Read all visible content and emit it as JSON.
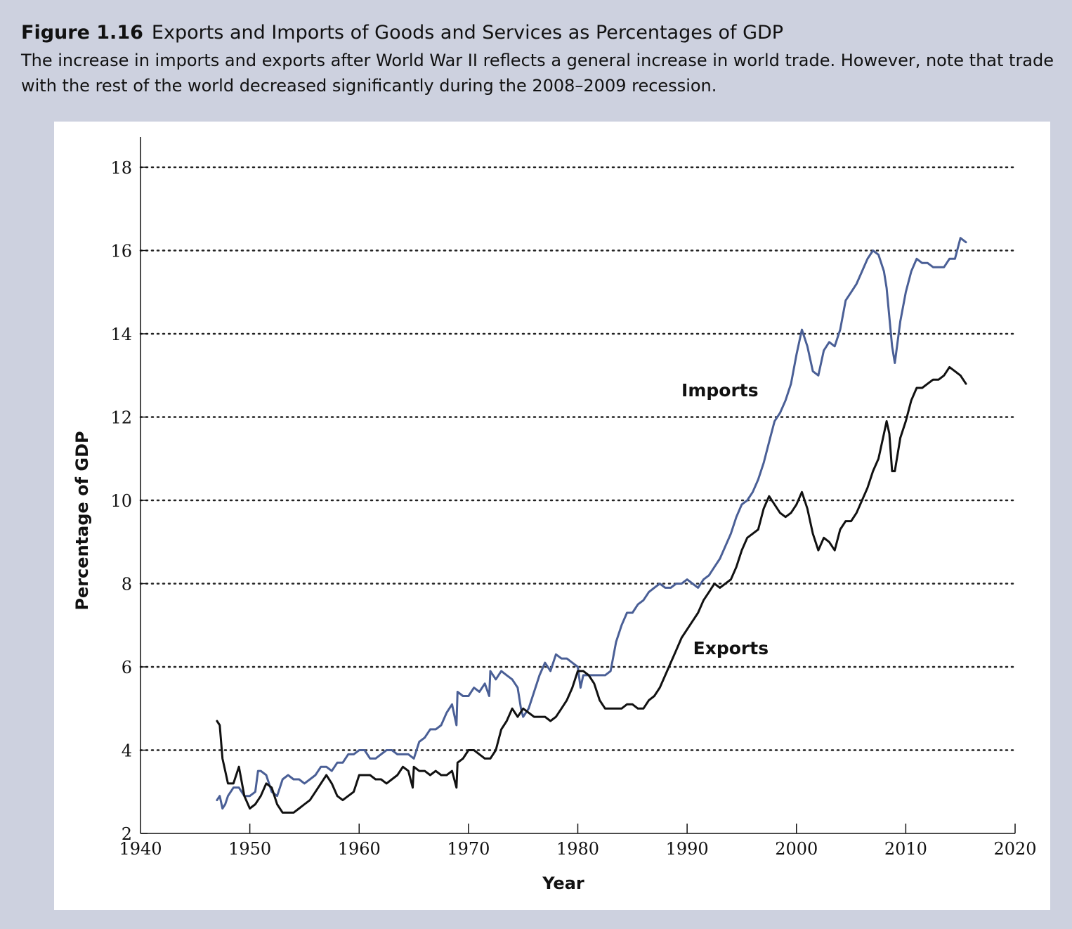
{
  "figure": {
    "number": "Figure 1.16",
    "title": "Exports and Imports of Goods and Services as Percentages of GDP",
    "caption": "The increase in imports and exports after World War II reflects a general increase in world trade. However, note that trade with the rest of the world decreased significantly during the 2008–2009 recession."
  },
  "colors": {
    "background": "#cdd1df",
    "panel": "#ffffff",
    "imports": "#4a5f96",
    "exports": "#111111",
    "grid": "#222222"
  },
  "chart_data": {
    "type": "line",
    "xlabel": "Year",
    "ylabel": "Percentage of GDP",
    "xlim": [
      1940,
      2020
    ],
    "ylim": [
      2,
      18
    ],
    "xticks": [
      "1940",
      "1950",
      "1960",
      "1970",
      "1980",
      "1990",
      "2000",
      "2010",
      "2020"
    ],
    "yticks": [
      "2",
      "4",
      "6",
      "8",
      "10",
      "12",
      "14",
      "16",
      "18"
    ],
    "grid": "horizontal dotted",
    "series": [
      {
        "name": "Imports",
        "color": "#4a5f96",
        "points": [
          [
            1947.0,
            2.8
          ],
          [
            1947.25,
            2.9
          ],
          [
            1947.5,
            2.6
          ],
          [
            1947.75,
            2.7
          ],
          [
            1948.0,
            2.9
          ],
          [
            1948.5,
            3.1
          ],
          [
            1949.0,
            3.1
          ],
          [
            1949.5,
            2.9
          ],
          [
            1950.0,
            2.9
          ],
          [
            1950.5,
            3.0
          ],
          [
            1950.75,
            3.5
          ],
          [
            1951.0,
            3.5
          ],
          [
            1951.5,
            3.4
          ],
          [
            1952.0,
            3.0
          ],
          [
            1952.5,
            2.9
          ],
          [
            1953.0,
            3.3
          ],
          [
            1953.5,
            3.4
          ],
          [
            1954.0,
            3.3
          ],
          [
            1954.5,
            3.3
          ],
          [
            1955.0,
            3.2
          ],
          [
            1955.5,
            3.3
          ],
          [
            1956.0,
            3.4
          ],
          [
            1956.5,
            3.6
          ],
          [
            1957.0,
            3.6
          ],
          [
            1957.5,
            3.5
          ],
          [
            1958.0,
            3.7
          ],
          [
            1958.5,
            3.7
          ],
          [
            1959.0,
            3.9
          ],
          [
            1959.5,
            3.9
          ],
          [
            1960.0,
            4.0
          ],
          [
            1960.5,
            4.0
          ],
          [
            1961.0,
            3.8
          ],
          [
            1961.5,
            3.8
          ],
          [
            1962.0,
            3.9
          ],
          [
            1962.5,
            4.0
          ],
          [
            1963.0,
            4.0
          ],
          [
            1963.5,
            3.9
          ],
          [
            1964.0,
            3.9
          ],
          [
            1964.5,
            3.9
          ],
          [
            1965.0,
            3.8
          ],
          [
            1965.5,
            4.2
          ],
          [
            1966.0,
            4.3
          ],
          [
            1966.5,
            4.5
          ],
          [
            1967.0,
            4.5
          ],
          [
            1967.5,
            4.6
          ],
          [
            1968.0,
            4.9
          ],
          [
            1968.5,
            5.1
          ],
          [
            1968.9,
            4.6
          ],
          [
            1969.0,
            5.4
          ],
          [
            1969.5,
            5.3
          ],
          [
            1970.0,
            5.3
          ],
          [
            1970.5,
            5.5
          ],
          [
            1971.0,
            5.4
          ],
          [
            1971.5,
            5.6
          ],
          [
            1971.9,
            5.3
          ],
          [
            1972.0,
            5.9
          ],
          [
            1972.5,
            5.7
          ],
          [
            1973.0,
            5.9
          ],
          [
            1973.5,
            5.8
          ],
          [
            1974.0,
            5.7
          ],
          [
            1974.5,
            5.5
          ],
          [
            1974.8,
            5.0
          ],
          [
            1975.0,
            4.8
          ],
          [
            1975.5,
            5.0
          ],
          [
            1976.0,
            5.4
          ],
          [
            1976.5,
            5.8
          ],
          [
            1977.0,
            6.1
          ],
          [
            1977.5,
            5.9
          ],
          [
            1978.0,
            6.3
          ],
          [
            1978.5,
            6.2
          ],
          [
            1979.0,
            6.2
          ],
          [
            1979.5,
            6.1
          ],
          [
            1980.0,
            6.0
          ],
          [
            1980.25,
            5.5
          ],
          [
            1980.5,
            5.8
          ],
          [
            1981.0,
            5.8
          ],
          [
            1981.5,
            5.8
          ],
          [
            1982.0,
            5.8
          ],
          [
            1982.5,
            5.8
          ],
          [
            1983.0,
            5.9
          ],
          [
            1983.5,
            6.6
          ],
          [
            1984.0,
            7.0
          ],
          [
            1984.5,
            7.3
          ],
          [
            1985.0,
            7.3
          ],
          [
            1985.5,
            7.5
          ],
          [
            1986.0,
            7.6
          ],
          [
            1986.5,
            7.8
          ],
          [
            1987.0,
            7.9
          ],
          [
            1987.5,
            8.0
          ],
          [
            1988.0,
            7.9
          ],
          [
            1988.5,
            7.9
          ],
          [
            1989.0,
            8.0
          ],
          [
            1989.5,
            8.0
          ],
          [
            1990.0,
            8.1
          ],
          [
            1990.5,
            8.0
          ],
          [
            1991.0,
            7.9
          ],
          [
            1991.5,
            8.1
          ],
          [
            1992.0,
            8.2
          ],
          [
            1992.5,
            8.4
          ],
          [
            1993.0,
            8.6
          ],
          [
            1993.5,
            8.9
          ],
          [
            1994.0,
            9.2
          ],
          [
            1994.5,
            9.6
          ],
          [
            1995.0,
            9.9
          ],
          [
            1995.5,
            10.0
          ],
          [
            1996.0,
            10.2
          ],
          [
            1996.5,
            10.5
          ],
          [
            1997.0,
            10.9
          ],
          [
            1997.5,
            11.4
          ],
          [
            1998.0,
            11.9
          ],
          [
            1998.5,
            12.1
          ],
          [
            1999.0,
            12.4
          ],
          [
            1999.5,
            12.8
          ],
          [
            2000.0,
            13.5
          ],
          [
            2000.5,
            14.1
          ],
          [
            2001.0,
            13.7
          ],
          [
            2001.5,
            13.1
          ],
          [
            2002.0,
            13.0
          ],
          [
            2002.5,
            13.6
          ],
          [
            2003.0,
            13.8
          ],
          [
            2003.5,
            13.7
          ],
          [
            2004.0,
            14.1
          ],
          [
            2004.5,
            14.8
          ],
          [
            2005.0,
            15.0
          ],
          [
            2005.5,
            15.2
          ],
          [
            2006.0,
            15.5
          ],
          [
            2006.5,
            15.8
          ],
          [
            2007.0,
            16.0
          ],
          [
            2007.5,
            15.9
          ],
          [
            2008.0,
            15.5
          ],
          [
            2008.25,
            15.1
          ],
          [
            2008.75,
            13.7
          ],
          [
            2009.0,
            13.3
          ],
          [
            2009.5,
            14.3
          ],
          [
            2010.0,
            15.0
          ],
          [
            2010.5,
            15.5
          ],
          [
            2011.0,
            15.8
          ],
          [
            2011.5,
            15.7
          ],
          [
            2012.0,
            15.7
          ],
          [
            2012.5,
            15.6
          ],
          [
            2013.0,
            15.6
          ],
          [
            2013.5,
            15.6
          ],
          [
            2014.0,
            15.8
          ],
          [
            2014.5,
            15.8
          ],
          [
            2015.0,
            16.3
          ],
          [
            2015.5,
            16.2
          ]
        ]
      },
      {
        "name": "Exports",
        "color": "#111111",
        "points": [
          [
            1947.0,
            4.7
          ],
          [
            1947.25,
            4.6
          ],
          [
            1947.5,
            3.8
          ],
          [
            1947.75,
            3.5
          ],
          [
            1948.0,
            3.2
          ],
          [
            1948.5,
            3.2
          ],
          [
            1949.0,
            3.6
          ],
          [
            1949.5,
            2.9
          ],
          [
            1950.0,
            2.6
          ],
          [
            1950.5,
            2.7
          ],
          [
            1951.0,
            2.9
          ],
          [
            1951.5,
            3.2
          ],
          [
            1952.0,
            3.1
          ],
          [
            1952.5,
            2.7
          ],
          [
            1953.0,
            2.5
          ],
          [
            1953.5,
            2.5
          ],
          [
            1954.0,
            2.5
          ],
          [
            1954.5,
            2.6
          ],
          [
            1955.0,
            2.7
          ],
          [
            1955.5,
            2.8
          ],
          [
            1956.0,
            3.0
          ],
          [
            1956.5,
            3.2
          ],
          [
            1957.0,
            3.4
          ],
          [
            1957.5,
            3.2
          ],
          [
            1958.0,
            2.9
          ],
          [
            1958.5,
            2.8
          ],
          [
            1959.0,
            2.9
          ],
          [
            1959.5,
            3.0
          ],
          [
            1960.0,
            3.4
          ],
          [
            1960.5,
            3.4
          ],
          [
            1961.0,
            3.4
          ],
          [
            1961.5,
            3.3
          ],
          [
            1962.0,
            3.3
          ],
          [
            1962.5,
            3.2
          ],
          [
            1963.0,
            3.3
          ],
          [
            1963.5,
            3.4
          ],
          [
            1964.0,
            3.6
          ],
          [
            1964.5,
            3.5
          ],
          [
            1964.9,
            3.1
          ],
          [
            1965.0,
            3.6
          ],
          [
            1965.5,
            3.5
          ],
          [
            1966.0,
            3.5
          ],
          [
            1966.5,
            3.4
          ],
          [
            1967.0,
            3.5
          ],
          [
            1967.5,
            3.4
          ],
          [
            1968.0,
            3.4
          ],
          [
            1968.5,
            3.5
          ],
          [
            1968.9,
            3.1
          ],
          [
            1969.0,
            3.7
          ],
          [
            1969.5,
            3.8
          ],
          [
            1970.0,
            4.0
          ],
          [
            1970.5,
            4.0
          ],
          [
            1971.0,
            3.9
          ],
          [
            1971.5,
            3.8
          ],
          [
            1972.0,
            3.8
          ],
          [
            1972.5,
            4.0
          ],
          [
            1973.0,
            4.5
          ],
          [
            1973.5,
            4.7
          ],
          [
            1974.0,
            5.0
          ],
          [
            1974.5,
            4.8
          ],
          [
            1975.0,
            5.0
          ],
          [
            1975.5,
            4.9
          ],
          [
            1976.0,
            4.8
          ],
          [
            1976.5,
            4.8
          ],
          [
            1977.0,
            4.8
          ],
          [
            1977.5,
            4.7
          ],
          [
            1978.0,
            4.8
          ],
          [
            1978.5,
            5.0
          ],
          [
            1979.0,
            5.2
          ],
          [
            1979.5,
            5.5
          ],
          [
            1980.0,
            5.9
          ],
          [
            1980.5,
            5.9
          ],
          [
            1981.0,
            5.8
          ],
          [
            1981.5,
            5.6
          ],
          [
            1982.0,
            5.2
          ],
          [
            1982.5,
            5.0
          ],
          [
            1983.0,
            5.0
          ],
          [
            1983.5,
            5.0
          ],
          [
            1984.0,
            5.0
          ],
          [
            1984.5,
            5.1
          ],
          [
            1985.0,
            5.1
          ],
          [
            1985.5,
            5.0
          ],
          [
            1986.0,
            5.0
          ],
          [
            1986.5,
            5.2
          ],
          [
            1987.0,
            5.3
          ],
          [
            1987.5,
            5.5
          ],
          [
            1988.0,
            5.8
          ],
          [
            1988.5,
            6.1
          ],
          [
            1989.0,
            6.4
          ],
          [
            1989.5,
            6.7
          ],
          [
            1990.0,
            6.9
          ],
          [
            1990.5,
            7.1
          ],
          [
            1991.0,
            7.3
          ],
          [
            1991.5,
            7.6
          ],
          [
            1992.0,
            7.8
          ],
          [
            1992.5,
            8.0
          ],
          [
            1993.0,
            7.9
          ],
          [
            1993.5,
            8.0
          ],
          [
            1994.0,
            8.1
          ],
          [
            1994.5,
            8.4
          ],
          [
            1995.0,
            8.8
          ],
          [
            1995.5,
            9.1
          ],
          [
            1996.0,
            9.2
          ],
          [
            1996.5,
            9.3
          ],
          [
            1997.0,
            9.8
          ],
          [
            1997.5,
            10.1
          ],
          [
            1998.0,
            9.9
          ],
          [
            1998.5,
            9.7
          ],
          [
            1999.0,
            9.6
          ],
          [
            1999.5,
            9.7
          ],
          [
            2000.0,
            9.9
          ],
          [
            2000.5,
            10.2
          ],
          [
            2001.0,
            9.8
          ],
          [
            2001.5,
            9.2
          ],
          [
            2002.0,
            8.8
          ],
          [
            2002.5,
            9.1
          ],
          [
            2003.0,
            9.0
          ],
          [
            2003.5,
            8.8
          ],
          [
            2004.0,
            9.3
          ],
          [
            2004.5,
            9.5
          ],
          [
            2005.0,
            9.5
          ],
          [
            2005.5,
            9.7
          ],
          [
            2006.0,
            10.0
          ],
          [
            2006.5,
            10.3
          ],
          [
            2007.0,
            10.7
          ],
          [
            2007.5,
            11.0
          ],
          [
            2008.0,
            11.6
          ],
          [
            2008.25,
            11.9
          ],
          [
            2008.5,
            11.6
          ],
          [
            2008.75,
            10.7
          ],
          [
            2009.0,
            10.7
          ],
          [
            2009.5,
            11.5
          ],
          [
            2010.0,
            11.9
          ],
          [
            2010.5,
            12.4
          ],
          [
            2011.0,
            12.7
          ],
          [
            2011.5,
            12.7
          ],
          [
            2012.0,
            12.8
          ],
          [
            2012.5,
            12.9
          ],
          [
            2013.0,
            12.9
          ],
          [
            2013.5,
            13.0
          ],
          [
            2014.0,
            13.2
          ],
          [
            2014.5,
            13.1
          ],
          [
            2015.0,
            13.0
          ],
          [
            2015.5,
            12.8
          ]
        ]
      }
    ],
    "annotations": [
      {
        "text": "Imports",
        "x": 1993.0,
        "y": 12.5
      },
      {
        "text": "Exports",
        "x": 1994.0,
        "y": 6.3
      }
    ]
  }
}
